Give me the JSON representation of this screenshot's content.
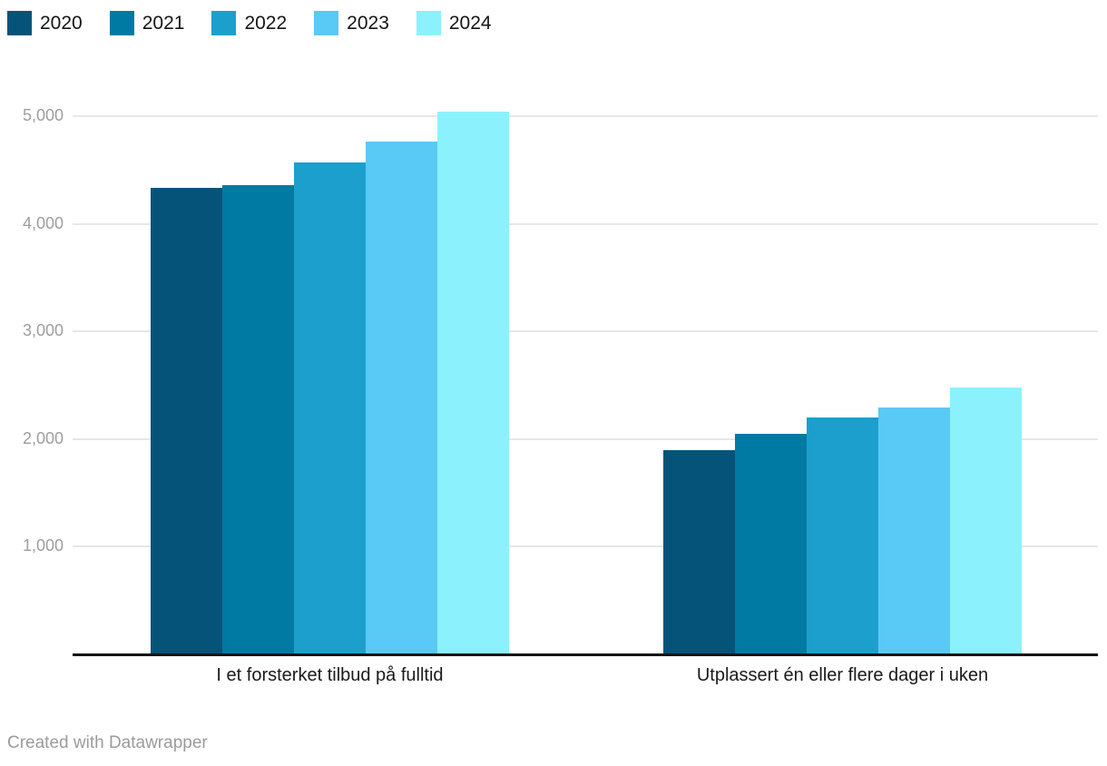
{
  "legend": {
    "position": "top-left"
  },
  "chart_data": {
    "type": "bar",
    "categories": [
      "I et forsterket tilbud på fulltid",
      "Utplassert én eller flere dager i uken"
    ],
    "series": [
      {
        "name": "2020",
        "color": "#06537a",
        "values": [
          4330,
          1900
        ]
      },
      {
        "name": "2021",
        "color": "#0079a3",
        "values": [
          4360,
          2050
        ]
      },
      {
        "name": "2022",
        "color": "#1d9fce",
        "values": [
          4570,
          2200
        ]
      },
      {
        "name": "2023",
        "color": "#59c9f5",
        "values": [
          4760,
          2290
        ]
      },
      {
        "name": "2024",
        "color": "#8bf2fd",
        "values": [
          5040,
          2480
        ]
      }
    ],
    "title": "",
    "xlabel": "",
    "ylabel": "",
    "yticks": [
      1000,
      2000,
      3000,
      4000,
      5000
    ],
    "ytick_labels": [
      "1,000",
      "2,000",
      "3,000",
      "4,000",
      "5,000"
    ],
    "ylim": [
      0,
      5200
    ],
    "grid": "horizontal",
    "legend_position": "top-left",
    "colors": {
      "gridline": "#e7e7e7",
      "axis_line": "#151515",
      "tick_text": "#9e9e9e",
      "category_text": "#1a1a1a",
      "legend_text": "#161616"
    }
  },
  "footer": {
    "credit": "Created with Datawrapper"
  }
}
